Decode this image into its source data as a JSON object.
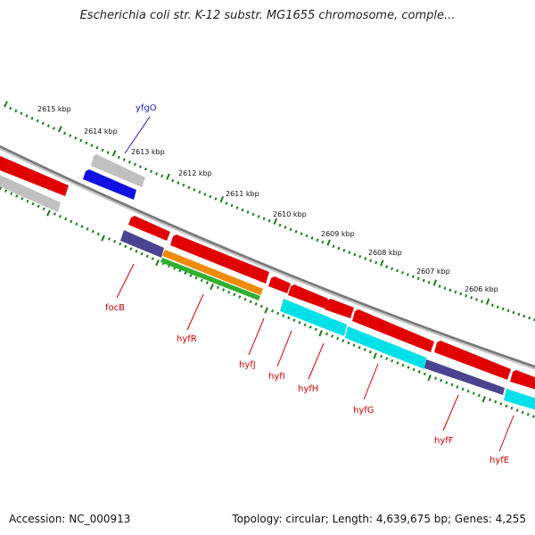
{
  "title": "Escherichia coli str. K-12 substr. MG1655 chromosome, comple...",
  "footer": {
    "accession": "Accession: NC_000913",
    "meta": "Topology: circular; Length: 4,639,675 bp; Genes: 4,255"
  },
  "colors": {
    "backbone": "#888888",
    "tick": "#1a7a1a",
    "forward_gene": "#e00000",
    "reverse_gene_cyan": "#00e0e8",
    "reverse_gene_navy": "#4a4490",
    "orange": "#f08a00",
    "green": "#30b030",
    "blue": "#1010e0",
    "grey": "#c0c0c0",
    "label_red": "#d00000",
    "label_blue": "#1a1acc"
  },
  "kbp_labels": [
    "2615 kbp",
    "2614 kbp",
    "2613 kbp",
    "2612 kbp",
    "2611 kbp",
    "2610 kbp",
    "2609 kbp",
    "2608 kbp",
    "2607 kbp",
    "2606 kbp"
  ],
  "gene_labels": [
    {
      "name": "yfgO",
      "color": "blue"
    },
    {
      "name": "focB",
      "color": "red"
    },
    {
      "name": "hyfR",
      "color": "red"
    },
    {
      "name": "hyfJ",
      "color": "red"
    },
    {
      "name": "hyfI",
      "color": "red"
    },
    {
      "name": "hyfH",
      "color": "red"
    },
    {
      "name": "hyfG",
      "color": "red"
    },
    {
      "name": "hyfF",
      "color": "red"
    },
    {
      "name": "hyfE",
      "color": "red"
    }
  ]
}
